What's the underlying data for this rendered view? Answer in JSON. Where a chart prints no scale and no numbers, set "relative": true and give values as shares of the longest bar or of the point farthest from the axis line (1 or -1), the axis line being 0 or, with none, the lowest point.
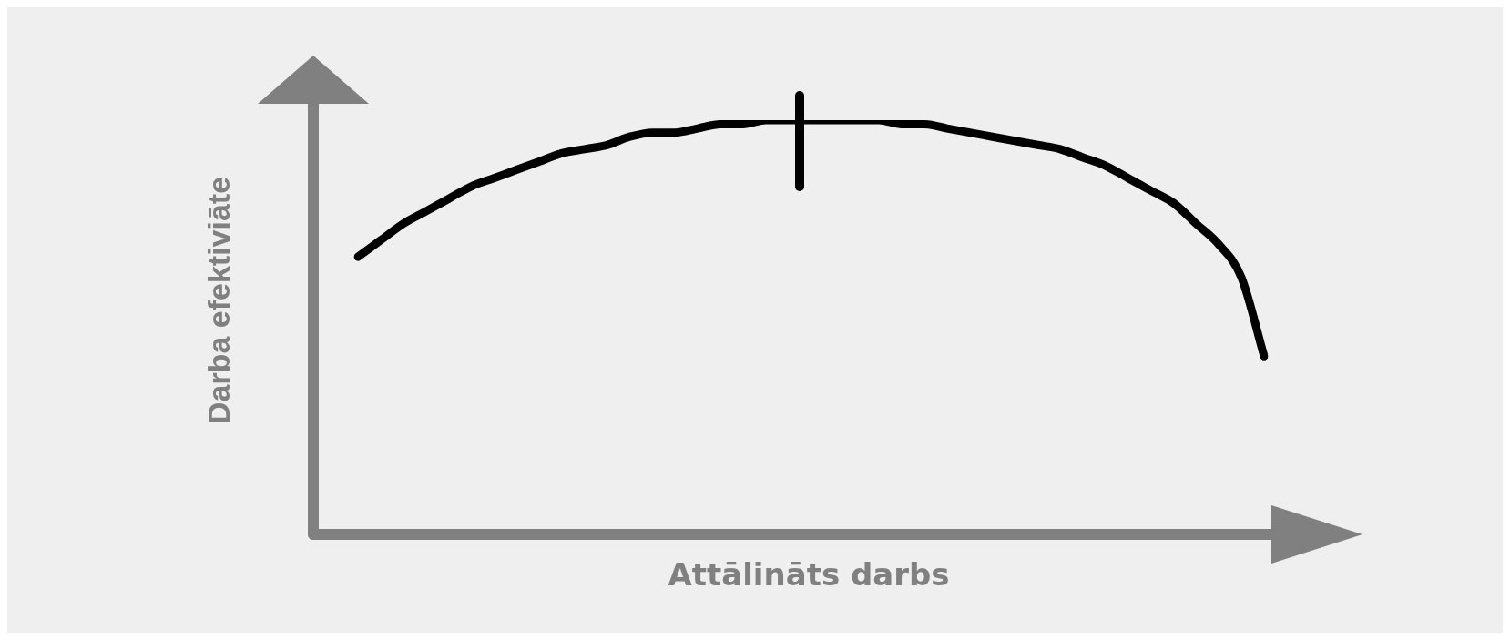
{
  "chart_data": {
    "type": "line",
    "xlabel": "Attālināts darbs",
    "ylabel": "Darba efektiviāte",
    "relative": true,
    "marker": "none",
    "legend": false,
    "color": "#000000",
    "categories": [
      null,
      null,
      null,
      null,
      null,
      null,
      null,
      null,
      null,
      null,
      null,
      null,
      null,
      null,
      null,
      null,
      null,
      null,
      null,
      null,
      null,
      null,
      null,
      null,
      null,
      null,
      null,
      null,
      null,
      null,
      null,
      null,
      null,
      null,
      null,
      null,
      null,
      null,
      null,
      null,
      null
    ],
    "values": [
      0.67,
      0.71,
      0.75,
      0.78,
      0.81,
      0.84,
      0.86,
      0.88,
      0.9,
      0.92,
      0.93,
      0.94,
      0.96,
      0.97,
      0.97,
      0.98,
      0.99,
      0.99,
      1.0,
      1.0,
      1.0,
      1.0,
      1.0,
      1.0,
      0.99,
      0.99,
      0.98,
      0.97,
      0.96,
      0.95,
      0.94,
      0.93,
      0.91,
      0.89,
      0.86,
      0.83,
      0.8,
      0.75,
      0.7,
      0.62,
      0.43
    ]
  }
}
